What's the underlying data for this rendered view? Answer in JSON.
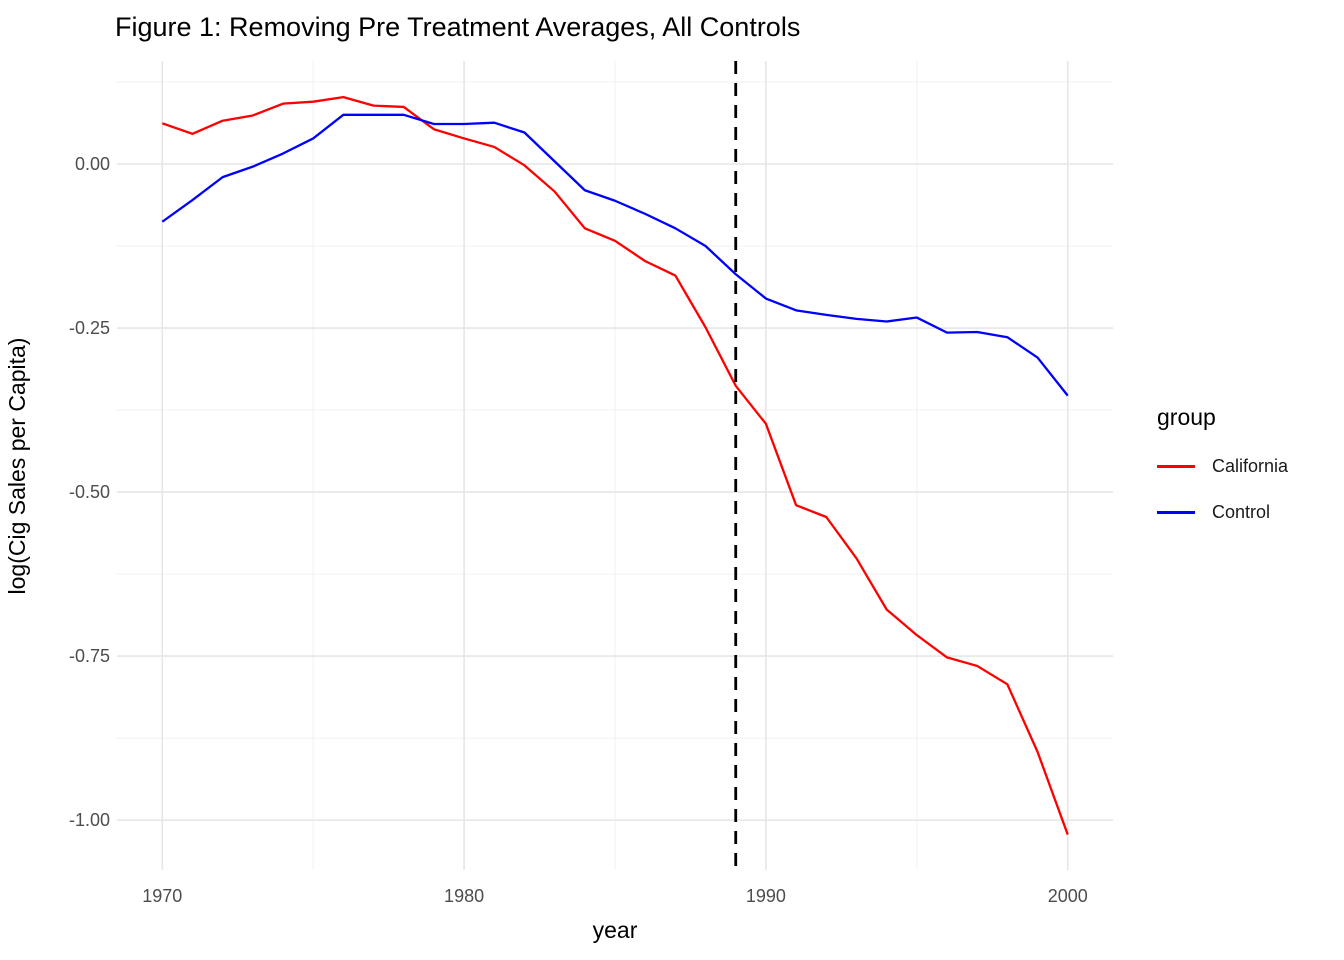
{
  "title": "Figure 1: Removing Pre Treatment Averages, All Controls",
  "chart_data": {
    "type": "line",
    "title": "Figure 1: Removing Pre Treatment Averages, All Controls",
    "xlabel": "year",
    "ylabel": "log(Cig Sales per Capita)",
    "xlim": [
      1968.5,
      2001.5
    ],
    "ylim": [
      -1.076,
      0.157
    ],
    "grid": true,
    "x_ticks": [
      {
        "label": "1970",
        "value": 1970
      },
      {
        "label": "1980",
        "value": 1980
      },
      {
        "label": "1990",
        "value": 1990
      },
      {
        "label": "2000",
        "value": 2000
      }
    ],
    "y_ticks": [
      {
        "label": "0.00",
        "value": 0.0
      },
      {
        "label": "-0.25",
        "value": -0.25
      },
      {
        "label": "-0.50",
        "value": -0.5
      },
      {
        "label": "-0.75",
        "value": -0.75
      },
      {
        "label": "-1.00",
        "value": -1.0
      }
    ],
    "x_minor_ticks": [
      1975,
      1985,
      1995
    ],
    "y_minor_ticks": [
      0.125,
      -0.125,
      -0.375,
      -0.625,
      -0.875
    ],
    "vline": {
      "x": 1989,
      "style": "dashed",
      "color": "#000000"
    },
    "x": [
      1970,
      1971,
      1972,
      1973,
      1974,
      1975,
      1976,
      1977,
      1978,
      1979,
      1980,
      1981,
      1982,
      1983,
      1984,
      1985,
      1986,
      1987,
      1988,
      1989,
      1990,
      1991,
      1992,
      1993,
      1994,
      1995,
      1996,
      1997,
      1998,
      1999,
      2000
    ],
    "series": [
      {
        "name": "California",
        "color": "#ff0000",
        "values": [
          0.062,
          0.046,
          0.066,
          0.074,
          0.092,
          0.095,
          0.102,
          0.089,
          0.087,
          0.053,
          0.039,
          0.026,
          -0.002,
          -0.042,
          -0.098,
          -0.117,
          -0.148,
          -0.17,
          -0.249,
          -0.338,
          -0.396,
          -0.52,
          -0.538,
          -0.601,
          -0.679,
          -0.718,
          -0.752,
          -0.765,
          -0.793,
          -0.896,
          -1.022
        ]
      },
      {
        "name": "Control",
        "color": "#0000ff",
        "values": [
          -0.088,
          -0.055,
          -0.02,
          -0.004,
          0.016,
          0.039,
          0.075,
          0.075,
          0.075,
          0.061,
          0.061,
          0.063,
          0.048,
          0.004,
          -0.04,
          -0.056,
          -0.076,
          -0.098,
          -0.125,
          -0.168,
          -0.205,
          -0.223,
          -0.23,
          -0.236,
          -0.24,
          -0.234,
          -0.257,
          -0.256,
          -0.264,
          -0.295,
          -0.353
        ]
      }
    ],
    "legend": {
      "title": "group",
      "position": "right",
      "entries": [
        {
          "label": "California",
          "color": "#ff0000"
        },
        {
          "label": "Control",
          "color": "#0000ff"
        }
      ]
    },
    "colors": {
      "grid_major": "#e6e6e6",
      "grid_minor": "#f1f1f1",
      "axis_text": "#4d4d4d",
      "california": "#ff0000",
      "control": "#0000ff",
      "vline": "#000000"
    }
  }
}
